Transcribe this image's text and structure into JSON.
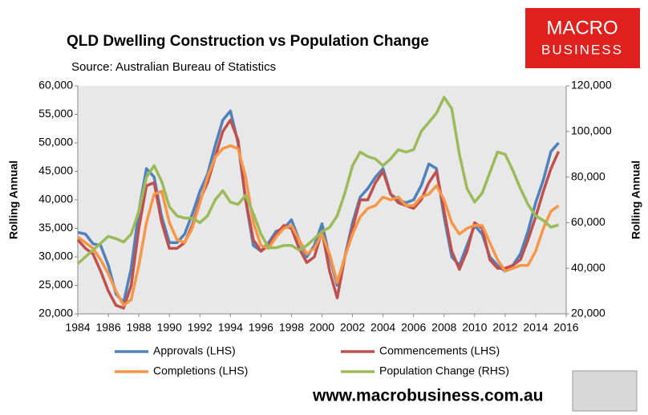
{
  "chart_data": {
    "type": "line",
    "title": "QLD Dwelling Construction vs Population Change",
    "subtitle": "Source: Australian Bureau of Statistics",
    "logo": [
      "MACRO",
      "BUSINESS"
    ],
    "footer": "www.macrobusiness.com.au",
    "ylabel": "Rolling Annual",
    "y2label": "Rolling Annual",
    "xlim": [
      1984,
      2016
    ],
    "xticks": [
      1984,
      1986,
      1988,
      1990,
      1992,
      1994,
      1996,
      1998,
      2000,
      2002,
      2004,
      2006,
      2008,
      2010,
      2012,
      2014,
      2016
    ],
    "ylim": [
      20000,
      60000
    ],
    "yticks": [
      {
        "value": 20000,
        "label": "20,000"
      },
      {
        "value": 25000,
        "label": "25,000"
      },
      {
        "value": 30000,
        "label": "30,000"
      },
      {
        "value": 35000,
        "label": "35,000"
      },
      {
        "value": 40000,
        "label": "40,000"
      },
      {
        "value": 45000,
        "label": "45,000"
      },
      {
        "value": 50000,
        "label": "50,000"
      },
      {
        "value": 55000,
        "label": "55,000"
      },
      {
        "value": 60000,
        "label": "60,000"
      }
    ],
    "y2lim": [
      20000,
      120000
    ],
    "y2ticks": [
      {
        "value": 20000,
        "label": "20,000"
      },
      {
        "value": 40000,
        "label": "40,000"
      },
      {
        "value": 60000,
        "label": "60,000"
      },
      {
        "value": 80000,
        "label": "80,000"
      },
      {
        "value": 100000,
        "label": "100,000"
      },
      {
        "value": 120000,
        "label": "120,000"
      }
    ],
    "grid": false,
    "x": [
      1984,
      1984.5,
      1985,
      1985.5,
      1986,
      1986.5,
      1987,
      1987.5,
      1988,
      1988.5,
      1989,
      1989.5,
      1990,
      1990.5,
      1991,
      1991.5,
      1992,
      1992.5,
      1993,
      1993.5,
      1994,
      1994.5,
      1995,
      1995.5,
      1996,
      1996.5,
      1997,
      1997.5,
      1998,
      1998.5,
      1999,
      1999.5,
      2000,
      2000.5,
      2001,
      2001.5,
      2002,
      2002.5,
      2003,
      2003.5,
      2004,
      2004.5,
      2005,
      2005.5,
      2006,
      2006.5,
      2007,
      2007.5,
      2008,
      2008.5,
      2009,
      2009.5,
      2010,
      2010.5,
      2011,
      2011.5,
      2012,
      2012.5,
      2013,
      2013.5,
      2014,
      2014.5,
      2015,
      2015.5
    ],
    "series": [
      {
        "name": "Approvals (LHS)",
        "color": "#4f81bd",
        "values": [
          34300,
          34000,
          32300,
          32000,
          28500,
          23500,
          22000,
          28000,
          38000,
          45500,
          44000,
          37000,
          32500,
          32500,
          34000,
          37500,
          41500,
          44500,
          49500,
          54000,
          55600,
          50000,
          40000,
          32000,
          31000,
          32500,
          34500,
          35000,
          36500,
          33000,
          30000,
          32000,
          35800,
          30000,
          25000,
          30000,
          36000,
          40500,
          42000,
          44000,
          45500,
          41000,
          40000,
          39500,
          40000,
          42500,
          46300,
          45500,
          37000,
          30000,
          28500,
          32000,
          35500,
          34000,
          30000,
          28500,
          27500,
          28500,
          30500,
          34500,
          39500,
          43500,
          48500,
          50000
        ]
      },
      {
        "name": "Commencements (LHS)",
        "color": "#c0504d",
        "values": [
          33000,
          31500,
          30500,
          27500,
          24000,
          21500,
          21000,
          25000,
          35000,
          42500,
          43000,
          36000,
          31500,
          31500,
          32500,
          35500,
          40000,
          43000,
          47500,
          52000,
          54000,
          50500,
          40000,
          33000,
          31000,
          32000,
          34000,
          35500,
          35000,
          31500,
          29000,
          30000,
          34500,
          27500,
          22800,
          30000,
          35000,
          40000,
          40000,
          43000,
          45000,
          41000,
          39500,
          39000,
          38500,
          40000,
          43000,
          45000,
          38000,
          31000,
          27800,
          31000,
          36000,
          35000,
          29500,
          28000,
          28000,
          28500,
          29500,
          33000,
          37000,
          41500,
          45500,
          48500
        ]
      },
      {
        "name": "Completions (LHS)",
        "color": "#f79646",
        "values": [
          33500,
          32500,
          31500,
          29500,
          27000,
          24000,
          21500,
          22500,
          28500,
          36000,
          41000,
          41500,
          36000,
          33000,
          32500,
          35000,
          39500,
          44000,
          47500,
          49000,
          49500,
          49000,
          44000,
          36000,
          32000,
          31500,
          33500,
          35000,
          35500,
          33000,
          30500,
          31500,
          34000,
          30500,
          25500,
          30000,
          34000,
          37000,
          38500,
          39000,
          40500,
          40000,
          40500,
          39000,
          39000,
          40500,
          41000,
          42500,
          40000,
          36000,
          34000,
          35000,
          35500,
          35500,
          32500,
          29500,
          27500,
          28000,
          28500,
          28500,
          31000,
          35000,
          38000,
          39000
        ]
      },
      {
        "name": "Population Change (RHS)",
        "color": "#9bbb59",
        "axis": "y2",
        "values": [
          42000,
          45000,
          48000,
          51000,
          54000,
          53000,
          51500,
          55000,
          65000,
          80000,
          85000,
          78000,
          67000,
          63000,
          62000,
          62000,
          60000,
          63000,
          70000,
          74000,
          69000,
          68000,
          72000,
          64000,
          55000,
          49000,
          49000,
          50000,
          50000,
          48000,
          50000,
          53000,
          56000,
          58000,
          63000,
          73000,
          85000,
          91000,
          89000,
          88000,
          85000,
          88000,
          92000,
          91000,
          92000,
          100000,
          104000,
          108000,
          115000,
          110000,
          90000,
          75000,
          69000,
          73000,
          82000,
          91000,
          90000,
          83000,
          75000,
          68000,
          63000,
          61000,
          58000,
          59000
        ]
      }
    ]
  }
}
